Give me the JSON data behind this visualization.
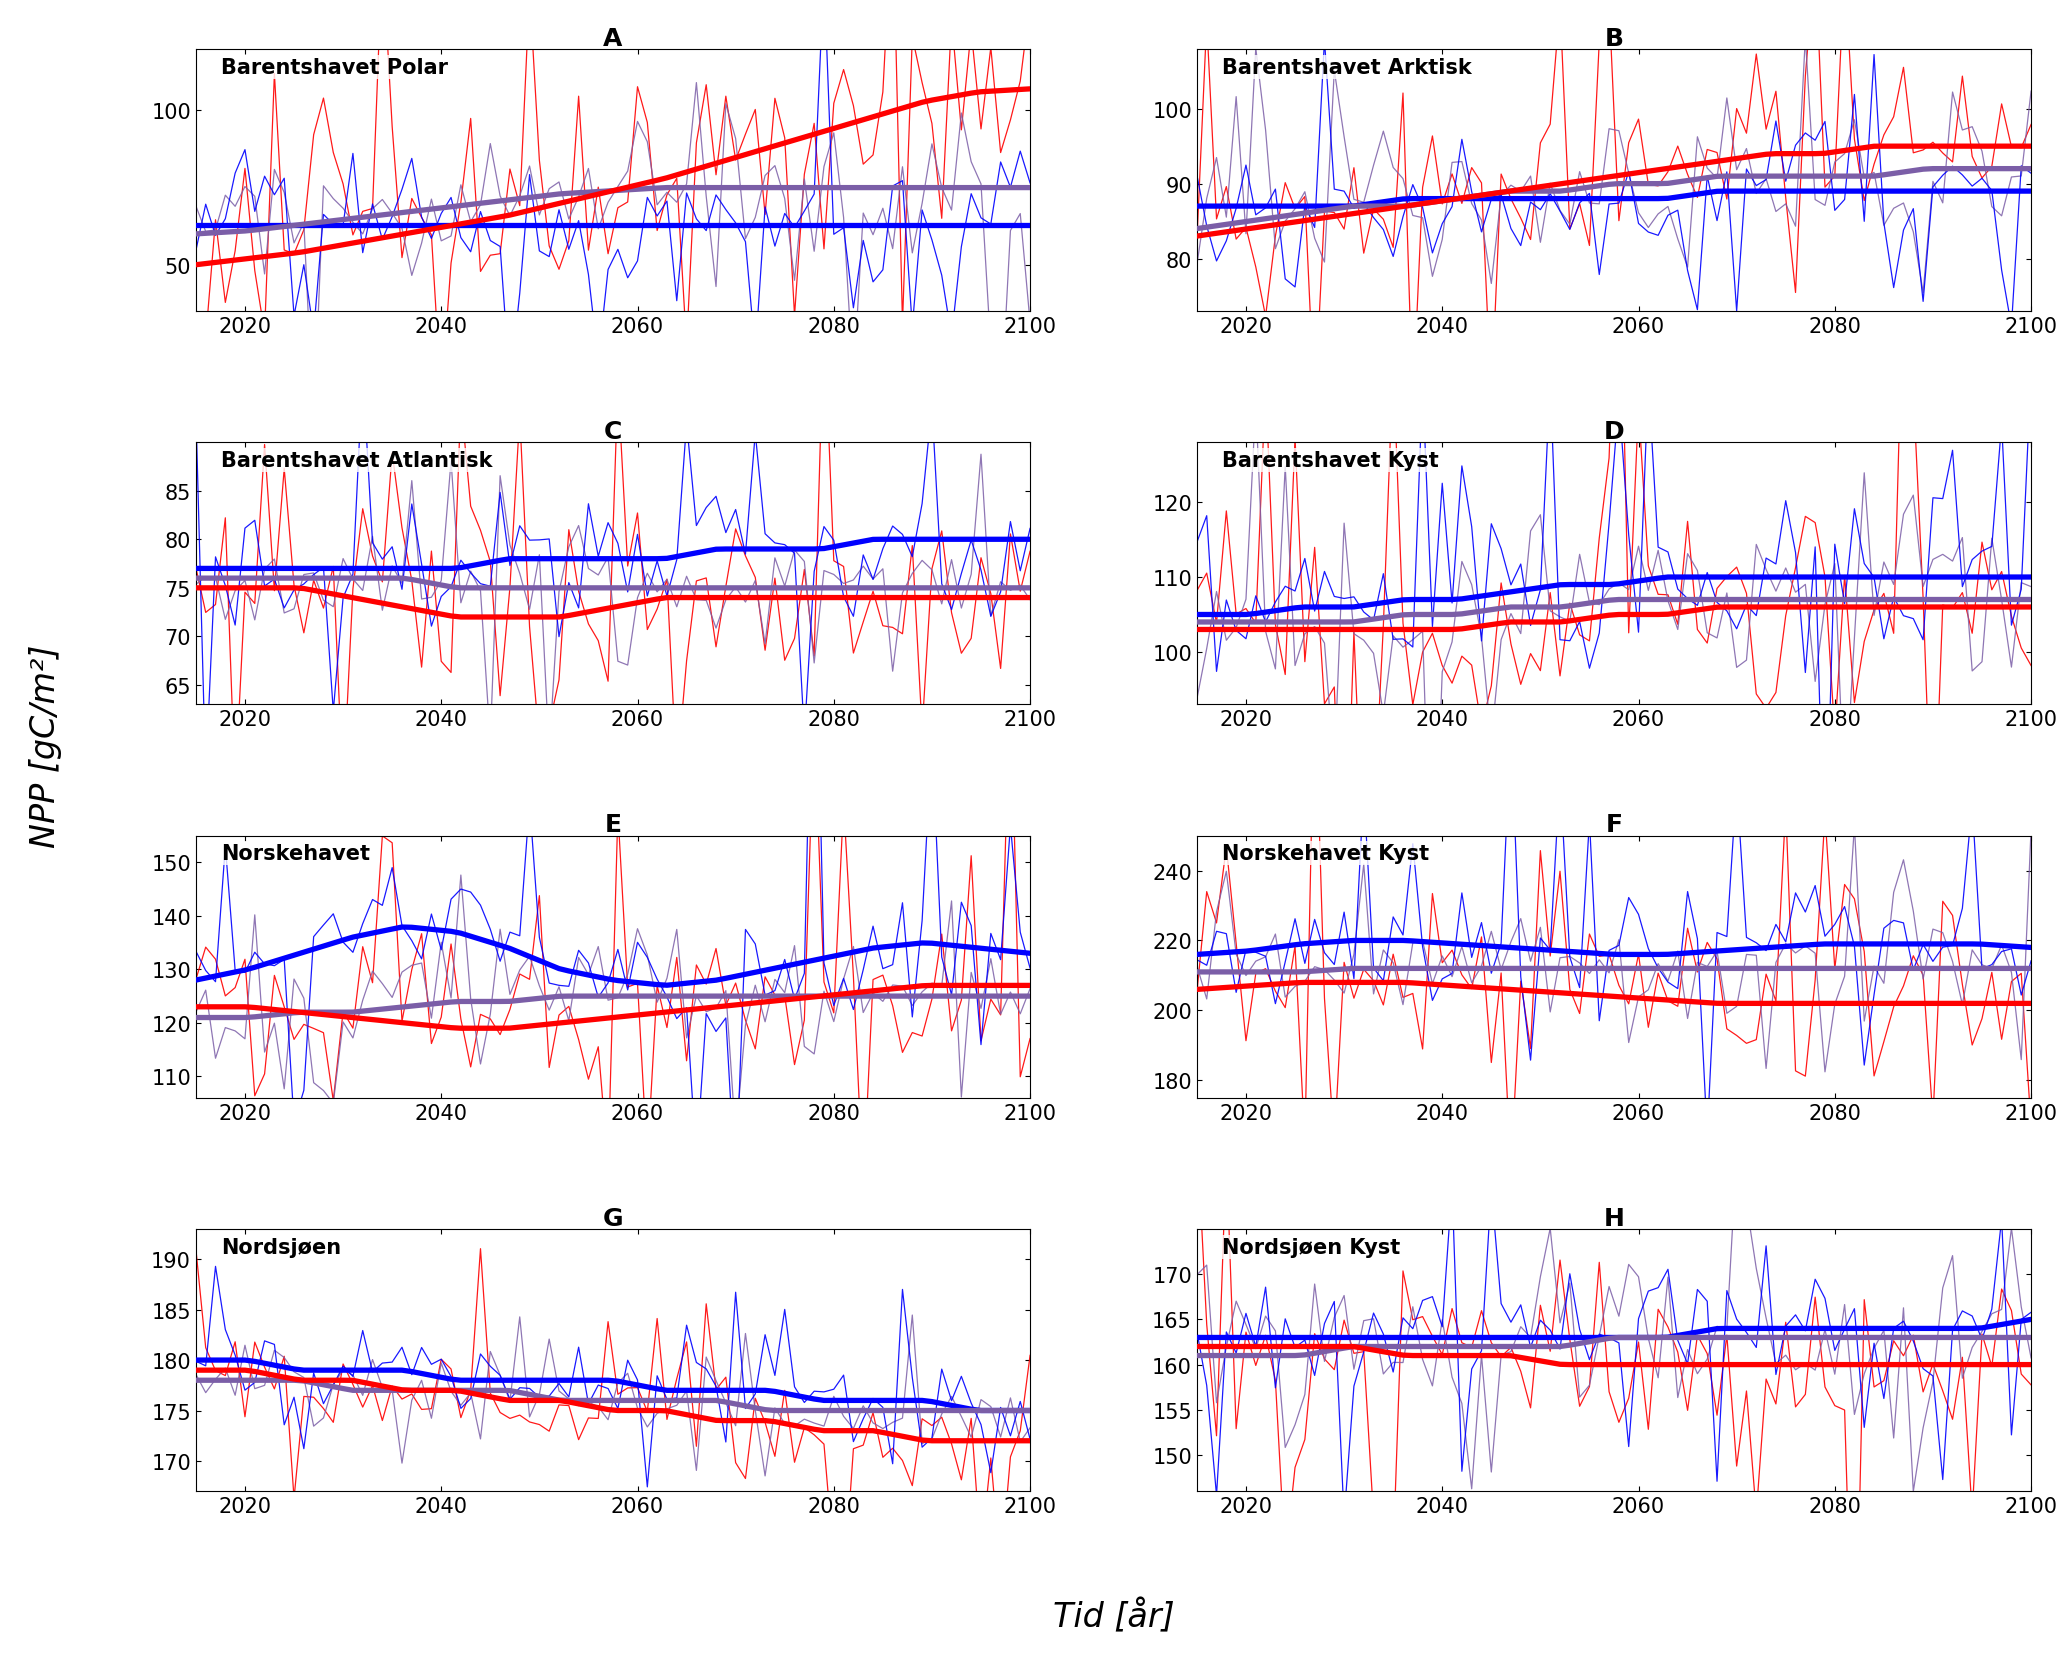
{
  "panels": [
    {
      "label": "A",
      "title": "Barentshavet Polar",
      "ylim": [
        35,
        120
      ],
      "yticks": [
        50,
        100
      ],
      "blue_smooth": [
        63,
        63,
        63,
        63,
        63,
        63,
        63,
        63,
        63,
        63,
        63,
        63,
        63,
        63,
        63,
        63,
        63
      ],
      "red_smooth": [
        50,
        52,
        54,
        57,
        60,
        63,
        66,
        70,
        74,
        78,
        83,
        88,
        93,
        98,
        103,
        106,
        107
      ],
      "purple_smooth": [
        60,
        61,
        63,
        65,
        67,
        69,
        71,
        73,
        74,
        75,
        75,
        75,
        75,
        75,
        75,
        75,
        75
      ],
      "blue_noise": 14,
      "red_noise": 22,
      "purple_noise": 16
    },
    {
      "label": "B",
      "title": "Barentshavet Arktisk",
      "ylim": [
        73,
        108
      ],
      "yticks": [
        80,
        90,
        100
      ],
      "blue_smooth": [
        87,
        87,
        87,
        87,
        88,
        88,
        88,
        88,
        88,
        88,
        89,
        89,
        89,
        89,
        89,
        89,
        89
      ],
      "red_smooth": [
        83,
        84,
        85,
        86,
        87,
        88,
        89,
        90,
        91,
        92,
        93,
        94,
        94,
        95,
        95,
        95,
        95
      ],
      "purple_smooth": [
        84,
        85,
        86,
        87,
        87,
        88,
        89,
        89,
        90,
        90,
        91,
        91,
        91,
        91,
        92,
        92,
        92
      ],
      "blue_noise": 6,
      "red_noise": 8,
      "purple_noise": 6
    },
    {
      "label": "C",
      "title": "Barentshavet Atlantisk",
      "ylim": [
        63,
        90
      ],
      "yticks": [
        65,
        70,
        75,
        80,
        85
      ],
      "blue_smooth": [
        77,
        77,
        77,
        77,
        77,
        77,
        78,
        78,
        78,
        78,
        79,
        79,
        79,
        80,
        80,
        80,
        80
      ],
      "red_smooth": [
        75,
        75,
        75,
        74,
        73,
        72,
        72,
        72,
        73,
        74,
        74,
        74,
        74,
        74,
        74,
        74,
        74
      ],
      "purple_smooth": [
        76,
        76,
        76,
        76,
        76,
        75,
        75,
        75,
        75,
        75,
        75,
        75,
        75,
        75,
        75,
        75,
        75
      ],
      "blue_noise": 5,
      "red_noise": 7,
      "purple_noise": 5
    },
    {
      "label": "D",
      "title": "Barentshavet Kyst",
      "ylim": [
        93,
        128
      ],
      "yticks": [
        100,
        110,
        120
      ],
      "blue_smooth": [
        105,
        105,
        106,
        106,
        107,
        107,
        108,
        109,
        109,
        110,
        110,
        110,
        110,
        110,
        110,
        110,
        110
      ],
      "red_smooth": [
        103,
        103,
        103,
        103,
        103,
        103,
        104,
        104,
        105,
        105,
        106,
        106,
        106,
        106,
        106,
        106,
        106
      ],
      "purple_smooth": [
        104,
        104,
        104,
        104,
        105,
        105,
        106,
        106,
        107,
        107,
        107,
        107,
        107,
        107,
        107,
        107,
        107
      ],
      "blue_noise": 8,
      "red_noise": 10,
      "purple_noise": 8
    },
    {
      "label": "E",
      "title": "Norskehavet",
      "ylim": [
        106,
        155
      ],
      "yticks": [
        110,
        120,
        130,
        140,
        150
      ],
      "blue_smooth": [
        128,
        130,
        133,
        136,
        138,
        137,
        134,
        130,
        128,
        127,
        128,
        130,
        132,
        134,
        135,
        134,
        133
      ],
      "red_smooth": [
        123,
        123,
        122,
        121,
        120,
        119,
        119,
        120,
        121,
        122,
        123,
        124,
        125,
        126,
        127,
        127,
        127
      ],
      "purple_smooth": [
        121,
        121,
        122,
        122,
        123,
        124,
        124,
        125,
        125,
        125,
        125,
        125,
        125,
        125,
        125,
        125,
        125
      ],
      "blue_noise": 9,
      "red_noise": 11,
      "purple_noise": 8
    },
    {
      "label": "F",
      "title": "Norskehavet Kyst",
      "ylim": [
        175,
        250
      ],
      "yticks": [
        180,
        200,
        220,
        240
      ],
      "blue_smooth": [
        216,
        217,
        219,
        220,
        220,
        219,
        218,
        217,
        216,
        216,
        217,
        218,
        219,
        219,
        219,
        219,
        218
      ],
      "red_smooth": [
        206,
        207,
        208,
        208,
        208,
        207,
        206,
        205,
        204,
        203,
        202,
        202,
        202,
        202,
        202,
        202,
        202
      ],
      "purple_smooth": [
        211,
        211,
        211,
        212,
        212,
        212,
        212,
        212,
        212,
        212,
        212,
        212,
        212,
        212,
        212,
        212,
        212
      ],
      "blue_noise": 14,
      "red_noise": 18,
      "purple_noise": 12
    },
    {
      "label": "G",
      "title": "Nordsjøen",
      "ylim": [
        167,
        193
      ],
      "yticks": [
        170,
        175,
        180,
        185,
        190
      ],
      "blue_smooth": [
        180,
        180,
        179,
        179,
        179,
        178,
        178,
        178,
        178,
        177,
        177,
        177,
        176,
        176,
        176,
        175,
        175
      ],
      "red_smooth": [
        179,
        179,
        178,
        178,
        177,
        177,
        176,
        176,
        175,
        175,
        174,
        174,
        173,
        173,
        172,
        172,
        172
      ],
      "purple_smooth": [
        178,
        178,
        178,
        177,
        177,
        177,
        177,
        176,
        176,
        176,
        176,
        175,
        175,
        175,
        175,
        175,
        175
      ],
      "blue_noise": 3,
      "red_noise": 4,
      "purple_noise": 3
    },
    {
      "label": "H",
      "title": "Nordsjøen Kyst",
      "ylim": [
        146,
        175
      ],
      "yticks": [
        150,
        155,
        160,
        165,
        170
      ],
      "blue_smooth": [
        163,
        163,
        163,
        163,
        163,
        163,
        163,
        163,
        163,
        163,
        164,
        164,
        164,
        164,
        164,
        164,
        165
      ],
      "red_smooth": [
        162,
        162,
        162,
        162,
        161,
        161,
        161,
        160,
        160,
        160,
        160,
        160,
        160,
        160,
        160,
        160,
        160
      ],
      "purple_smooth": [
        161,
        161,
        161,
        162,
        162,
        162,
        162,
        162,
        163,
        163,
        163,
        163,
        163,
        163,
        163,
        163,
        163
      ],
      "blue_noise": 5,
      "red_noise": 7,
      "purple_noise": 6
    }
  ],
  "xmin": 2015,
  "xmax": 2100,
  "xticks": [
    2020,
    2040,
    2060,
    2080,
    2100
  ],
  "xlabel": "Tid [år]",
  "ylabel": "NPP [gC/m²]",
  "blue_color": "#0000FF",
  "red_color": "#FF0000",
  "purple_color": "#7B5EA7",
  "thin_lw": 0.9,
  "thick_lw": 3.8,
  "title_fontsize": 15,
  "label_fontsize": 24,
  "tick_fontsize": 15,
  "panel_label_fontsize": 18
}
